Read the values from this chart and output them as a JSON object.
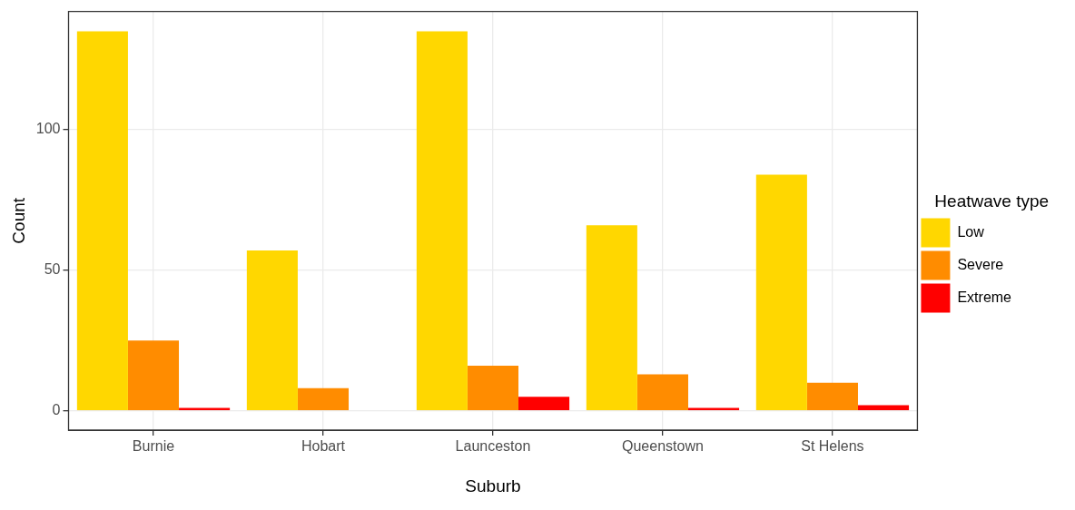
{
  "chart_data": {
    "type": "bar",
    "xlabel": "Suburb",
    "ylabel": "Count",
    "legend_title": "Heatwave type",
    "categories": [
      "Burnie",
      "Hobart",
      "Launceston",
      "Queenstown",
      "St Helens"
    ],
    "series": [
      {
        "name": "Low",
        "color": "#ffd700",
        "values": [
          135,
          57,
          135,
          66,
          84
        ]
      },
      {
        "name": "Severe",
        "color": "#ff8c00",
        "values": [
          25,
          8,
          16,
          13,
          10
        ]
      },
      {
        "name": "Extreme",
        "color": "#ff0000",
        "values": [
          1,
          null,
          5,
          1,
          2
        ]
      }
    ],
    "ylim": [
      -6.9,
      142.1
    ],
    "yticks": [
      0,
      50,
      100
    ],
    "grid": true,
    "legend": "right"
  }
}
